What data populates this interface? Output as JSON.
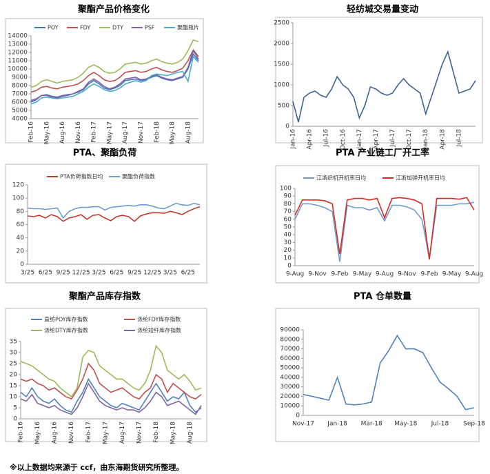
{
  "chart_data": [
    {
      "type": "line",
      "title": "聚酯产品价格变化",
      "categories": [
        "Feb-16",
        null,
        null,
        "May-16",
        null,
        null,
        "Aug-16",
        null,
        null,
        "Nov-16",
        null,
        null,
        "Feb-17",
        null,
        null,
        "May-17",
        null,
        null,
        "Aug-17",
        null,
        null,
        "Nov-17",
        null,
        null,
        "Feb-18",
        null,
        null,
        "May-18",
        null,
        null,
        "Aug-18",
        null,
        null
      ],
      "series": [
        {
          "name": "POY",
          "color": "#4472c4",
          "values": [
            6000,
            6300,
            6800,
            6900,
            6700,
            6600,
            6800,
            6900,
            7000,
            7200,
            7500,
            8200,
            8600,
            8200,
            7700,
            7500,
            7700,
            8000,
            8600,
            8700,
            8800,
            8600,
            8700,
            9000,
            9200,
            8900,
            8700,
            8600,
            8800,
            9000,
            10000,
            11800,
            11000
          ]
        },
        {
          "name": "FDY",
          "color": "#c0504d",
          "values": [
            7200,
            7400,
            7800,
            7900,
            7700,
            7600,
            7800,
            7900,
            8000,
            8200,
            8600,
            9200,
            9600,
            9200,
            8700,
            8500,
            8600,
            9000,
            9600,
            9700,
            9800,
            9600,
            9700,
            10000,
            10200,
            9900,
            9700,
            9600,
            9800,
            10100,
            11000,
            12300,
            11500
          ]
        },
        {
          "name": "DTY",
          "color": "#9bbb59",
          "values": [
            7800,
            8000,
            8500,
            8700,
            8500,
            8300,
            8500,
            8600,
            8700,
            9000,
            9500,
            10200,
            10500,
            10200,
            9700,
            9500,
            9600,
            10000,
            10600,
            10700,
            10800,
            10600,
            10700,
            11000,
            11200,
            10900,
            10700,
            10600,
            10800,
            11200,
            12200,
            13500,
            13300
          ]
        },
        {
          "name": "PSF",
          "color": "#8064a2",
          "values": [
            6200,
            6400,
            6800,
            6800,
            6600,
            6500,
            6700,
            6800,
            7000,
            7300,
            7600,
            8400,
            8800,
            8400,
            7900,
            7600,
            7800,
            8200,
            8800,
            8900,
            9000,
            8700,
            8800,
            9100,
            9300,
            9000,
            8800,
            8700,
            8900,
            9100,
            10200,
            12200,
            11200
          ]
        },
        {
          "name": "聚酯瓶片",
          "color": "#4bacc6",
          "values": [
            5800,
            6000,
            6500,
            6600,
            6500,
            6400,
            6500,
            6600,
            6700,
            7000,
            7300,
            7800,
            8200,
            7900,
            7500,
            7300,
            7400,
            7700,
            8200,
            8400,
            8600,
            8400,
            8600,
            9200,
            9400,
            9300,
            9200,
            9400,
            9600,
            9700,
            8500,
            11500,
            10800
          ]
        }
      ],
      "ylim": [
        4000,
        14000
      ],
      "yticks": [
        4000,
        5000,
        6000,
        7000,
        8000,
        9000,
        10000,
        11000,
        12000,
        13000,
        14000
      ]
    },
    {
      "type": "line",
      "title": "轻纺城交易量变动",
      "categories": [
        "Jan-16",
        null,
        null,
        "Apr-16",
        null,
        null,
        "Jul-16",
        null,
        null,
        "Oct-16",
        null,
        null,
        "Jan-17",
        null,
        null,
        "Apr-17",
        null,
        null,
        "Jul-17",
        null,
        null,
        "Oct-17",
        null,
        null,
        "Jan-18",
        null,
        null,
        "Apr-18",
        null,
        null,
        "Jul-18",
        null,
        null,
        null
      ],
      "series": [
        {
          "name": null,
          "color": "#3c6496",
          "values": [
            600,
            100,
            700,
            800,
            850,
            750,
            700,
            900,
            1200,
            1000,
            900,
            700,
            200,
            500,
            950,
            900,
            800,
            750,
            800,
            1000,
            1150,
            1000,
            900,
            800,
            300,
            700,
            1100,
            1500,
            1800,
            1300,
            800,
            850,
            900,
            1100
          ]
        }
      ],
      "ylim": [
        0,
        2500
      ],
      "yticks": [
        0,
        500,
        1000,
        1500,
        2000,
        2500
      ]
    },
    {
      "type": "line",
      "title": "PTA、聚酯负荷",
      "categories": [
        "3/25",
        null,
        null,
        "6/25",
        null,
        null,
        "9/25",
        null,
        null,
        "12/25",
        null,
        null,
        "3/25",
        null,
        null,
        "6/25",
        null,
        null,
        "9/25",
        null,
        null,
        "12/25",
        null,
        null,
        "3/25",
        null,
        null,
        "6/25",
        null,
        null
      ],
      "series": [
        {
          "name": "PTA负荷指数日均",
          "color": "#c0392b",
          "values": [
            73,
            72,
            74,
            70,
            75,
            72,
            65,
            70,
            72,
            75,
            68,
            74,
            75,
            70,
            66,
            72,
            74,
            72,
            65,
            73,
            76,
            78,
            78,
            77,
            80,
            78,
            75,
            80,
            84,
            87
          ]
        },
        {
          "name": "聚酯负荷指数",
          "color": "#6e9ad0",
          "values": [
            85,
            84,
            84,
            83,
            84,
            85,
            70,
            80,
            84,
            86,
            86,
            87,
            87,
            82,
            86,
            87,
            88,
            89,
            88,
            90,
            90,
            88,
            85,
            84,
            88,
            92,
            90,
            89,
            92,
            90
          ]
        }
      ],
      "ylim": [
        0,
        120
      ],
      "yticks": [
        0,
        20,
        40,
        60,
        80,
        100,
        120
      ]
    },
    {
      "type": "line",
      "title": "PTA 产业链工厂开工率",
      "categories": [
        "9-Aug",
        null,
        null,
        "9-Nov",
        null,
        null,
        "9-Feb",
        null,
        null,
        "9-May",
        null,
        null,
        "9-Aug",
        null,
        null,
        "9-Nov",
        null,
        null,
        "9-Feb",
        null,
        null,
        "9-May",
        null,
        null,
        "9-Aug"
      ],
      "series": [
        {
          "name": "江浙织机开机率日均",
          "color": "#6e9ad0",
          "values": [
            60,
            80,
            80,
            78,
            75,
            70,
            5,
            78,
            75,
            75,
            72,
            75,
            58,
            78,
            78,
            76,
            72,
            60,
            10,
            78,
            78,
            78,
            80,
            80,
            82
          ]
        },
        {
          "name": "江浙加弹开机率日均",
          "color": "#d42a1f",
          "values": [
            65,
            85,
            85,
            85,
            84,
            80,
            15,
            85,
            87,
            87,
            85,
            87,
            62,
            87,
            88,
            87,
            85,
            80,
            8,
            87,
            87,
            87,
            86,
            88,
            72
          ]
        }
      ],
      "ylim": [
        0,
        100
      ],
      "yticks": [
        0,
        10,
        20,
        30,
        40,
        50,
        60,
        70,
        80,
        90,
        100
      ]
    },
    {
      "type": "line",
      "title": "聚酯产品库存指数",
      "categories": [
        "Feb-16",
        null,
        null,
        "May-16",
        null,
        null,
        "Aug-16",
        null,
        null,
        "Nov-16",
        null,
        null,
        "Feb-17",
        null,
        null,
        "May-17",
        null,
        null,
        "Aug-17",
        null,
        null,
        "Nov-17",
        null,
        null,
        "Feb-18",
        null,
        null,
        "May-18",
        null,
        null,
        "Aug-18",
        null,
        null
      ],
      "series": [
        {
          "name": "直纺POY库存指数",
          "color": "#4f81bd",
          "values": [
            12,
            10,
            14,
            10,
            8,
            7,
            9,
            6,
            4,
            3,
            8,
            12,
            18,
            14,
            10,
            8,
            6,
            5,
            7,
            6,
            5,
            4,
            8,
            12,
            16,
            12,
            8,
            10,
            9,
            12,
            6,
            3,
            5
          ]
        },
        {
          "name": "涤纶FDY库存指数",
          "color": "#c0504d",
          "values": [
            18,
            17,
            18,
            16,
            15,
            13,
            14,
            12,
            10,
            9,
            13,
            18,
            25,
            22,
            16,
            14,
            12,
            13,
            14,
            12,
            10,
            9,
            12,
            14,
            20,
            18,
            12,
            16,
            14,
            12,
            10,
            9,
            11
          ]
        },
        {
          "name": "涤纶DTY库存指数",
          "color": "#9bbb59",
          "values": [
            26,
            25,
            24,
            22,
            20,
            18,
            17,
            14,
            12,
            10,
            14,
            28,
            31,
            30,
            24,
            22,
            20,
            18,
            18,
            16,
            14,
            13,
            16,
            22,
            33,
            30,
            22,
            20,
            18,
            20,
            17,
            13,
            14
          ]
        },
        {
          "name": "涤纶短纤库存指数",
          "color": "#8064a2",
          "values": [
            9,
            8,
            11,
            7,
            6,
            5,
            6,
            4,
            3,
            2,
            5,
            10,
            16,
            12,
            8,
            6,
            5,
            4,
            5,
            4,
            4,
            3,
            5,
            8,
            12,
            10,
            6,
            7,
            8,
            6,
            4,
            2,
            6
          ]
        }
      ],
      "ylim": [
        0,
        35
      ],
      "yticks": [
        0,
        5,
        10,
        15,
        20,
        25,
        30,
        35
      ]
    },
    {
      "type": "line",
      "title": "PTA 仓单数量",
      "categories": [
        "Nov-17",
        null,
        null,
        null,
        "Jan-18",
        null,
        null,
        null,
        "Mar-18",
        null,
        null,
        null,
        "May-18",
        null,
        null,
        null,
        "Jul-18",
        null,
        null,
        null,
        "Sep-18"
      ],
      "series": [
        {
          "name": null,
          "color": "#4f81bd",
          "values": [
            22000,
            20000,
            18000,
            16000,
            40000,
            12000,
            11000,
            12000,
            14000,
            55000,
            68000,
            84000,
            70000,
            70000,
            66000,
            50000,
            35000,
            28000,
            20000,
            6000,
            8000
          ]
        }
      ],
      "ylim": [
        0,
        90000
      ],
      "yticks": [
        0,
        10000,
        20000,
        30000,
        40000,
        50000,
        60000,
        70000,
        80000,
        90000
      ]
    }
  ],
  "footnote": "※以上数据均来源于 ccf，由东海期货研究所整理。"
}
